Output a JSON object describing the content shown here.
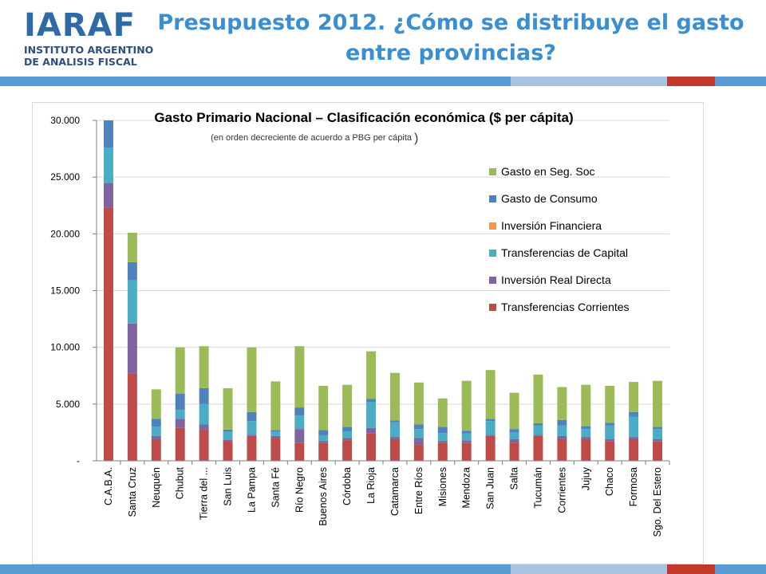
{
  "header": {
    "logo_mark": "IARAF",
    "logo_line1": "INSTITUTO ARGENTINO",
    "logo_line2": "DE ANALISIS FISCAL",
    "title_line1": "Presupuesto 2012. ¿Cómo se distribuye el gasto",
    "title_line2": "entre provincias?"
  },
  "colors": {
    "title": "#3a8fd0",
    "band_blue": "#5b9bd5",
    "band_light": "#a9c4e0",
    "band_red": "#c0392b"
  },
  "chart_data": {
    "type": "bar",
    "stacked": true,
    "title": "Gasto Primario Nacional – Clasificación económica ($ per cápita)",
    "subtitle": "(en orden decreciente de acuerdo a PBG per cápita",
    "subtitle_paren": ")",
    "ylim": [
      0,
      30000
    ],
    "yticks": [
      0,
      5000,
      10000,
      15000,
      20000,
      25000,
      30000
    ],
    "ytick_labels": [
      "-",
      "5.000",
      "10.000",
      "15.000",
      "20.000",
      "25.000",
      "30.000"
    ],
    "grid": true,
    "legend_position": "right",
    "categories": [
      "C.A.B.A.",
      "Santa Cruz",
      "Neuquén",
      "Chubut",
      "Tierra del ...",
      "San Luis",
      "La Pampa",
      "Santa Fé",
      "Río Negro",
      "Buenos Aires",
      "Córdoba",
      "La Rioja",
      "Catamarca",
      "Entre Ríos",
      "Misiones",
      "Mendoza",
      "San Juan",
      "Salta",
      "Tucumán",
      "Corrientes",
      "Jujuy",
      "Chaco",
      "Formosa",
      "Sgo. Del Estero"
    ],
    "series": [
      {
        "name": "Transferencias Corrientes",
        "color": "#be4b48",
        "values": [
          22300,
          7700,
          1900,
          2900,
          2700,
          1750,
          2200,
          2000,
          1600,
          1600,
          1800,
          2400,
          1900,
          1400,
          1600,
          1600,
          2200,
          1600,
          2200,
          1900,
          1900,
          1700,
          1900,
          1700
        ]
      },
      {
        "name": "Inversión Real Directa",
        "color": "#7e64a0",
        "values": [
          2200,
          4400,
          300,
          800,
          500,
          100,
          100,
          200,
          1200,
          150,
          200,
          500,
          200,
          600,
          150,
          200,
          100,
          300,
          100,
          300,
          200,
          200,
          200,
          200
        ]
      },
      {
        "name": "Transferencias de Capital",
        "color": "#4aacc5",
        "values": [
          3100,
          3800,
          800,
          800,
          1800,
          700,
          1200,
          350,
          1200,
          500,
          600,
          2300,
          1300,
          800,
          700,
          600,
          1200,
          600,
          800,
          900,
          700,
          1200,
          1800,
          900
        ]
      },
      {
        "name": "Inversión Financiera",
        "color": "#f79646",
        "values": [
          0,
          0,
          0,
          0,
          0,
          0,
          0,
          0,
          0,
          0,
          0,
          0,
          0,
          0,
          0,
          0,
          0,
          0,
          0,
          0,
          0,
          0,
          0,
          0
        ]
      },
      {
        "name": "Gasto de Consumo",
        "color": "#4f81bd",
        "values": [
          2400,
          1600,
          700,
          1400,
          1400,
          200,
          800,
          150,
          700,
          450,
          400,
          250,
          150,
          400,
          550,
          250,
          200,
          300,
          200,
          500,
          250,
          250,
          400,
          200
        ]
      },
      {
        "name": "Gasto en Seg. Soc",
        "color": "#9bbb59",
        "values": [
          0,
          2600,
          2600,
          4100,
          3700,
          3650,
          5700,
          4300,
          5400,
          3900,
          3700,
          4200,
          4200,
          3700,
          2500,
          4400,
          4300,
          3200,
          4300,
          2900,
          3650,
          3250,
          2650,
          4050
        ]
      }
    ],
    "legend_order": [
      "Gasto en Seg. Soc",
      "Gasto de Consumo",
      "Inversión Financiera",
      "Transferencias de Capital",
      "Inversión Real Directa",
      "Transferencias Corrientes"
    ]
  }
}
